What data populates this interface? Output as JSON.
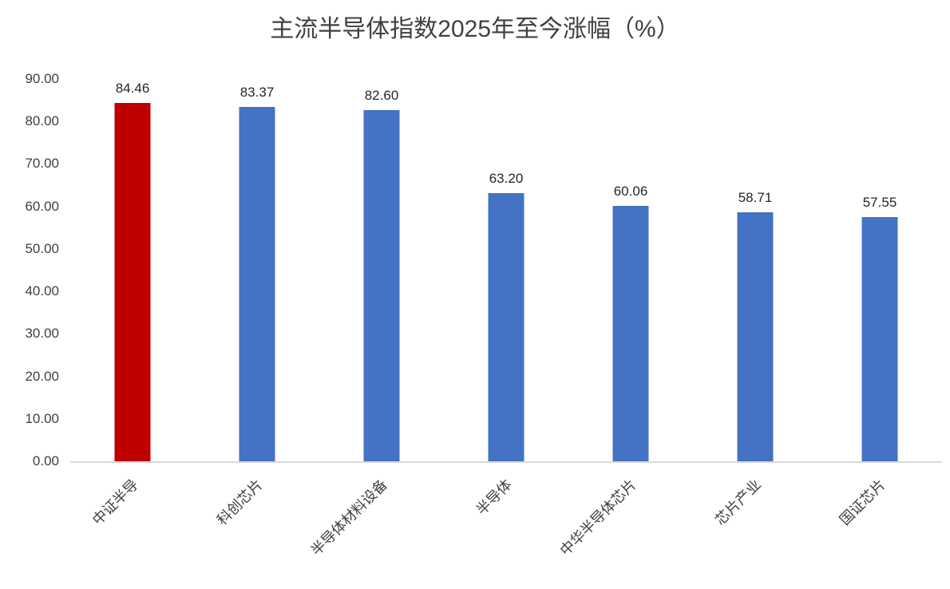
{
  "chart_data": {
    "type": "bar",
    "title": "主流半导体指数2025年至今涨幅（%）",
    "categories": [
      "中证半导",
      "科创芯片",
      "半导体材料设备",
      "半导体",
      "中华半导体芯片",
      "芯片产业",
      "国证芯片"
    ],
    "values": [
      84.46,
      83.37,
      82.6,
      63.2,
      60.06,
      58.71,
      57.55
    ],
    "value_labels": [
      "84.46",
      "83.37",
      "82.60",
      "63.20",
      "60.06",
      "58.71",
      "57.55"
    ],
    "bar_colors": [
      "#c00000",
      "#4472c4",
      "#4472c4",
      "#4472c4",
      "#4472c4",
      "#4472c4",
      "#4472c4"
    ],
    "highlight_color": "#c00000",
    "default_bar_color": "#4472c4",
    "xlabel": "",
    "ylabel": "",
    "ylim": [
      0,
      90
    ],
    "ytick_step": 10,
    "ytick_labels": [
      "0.00",
      "10.00",
      "20.00",
      "30.00",
      "40.00",
      "50.00",
      "60.00",
      "70.00",
      "80.00",
      "90.00"
    ],
    "grid": false,
    "legend": "none"
  }
}
